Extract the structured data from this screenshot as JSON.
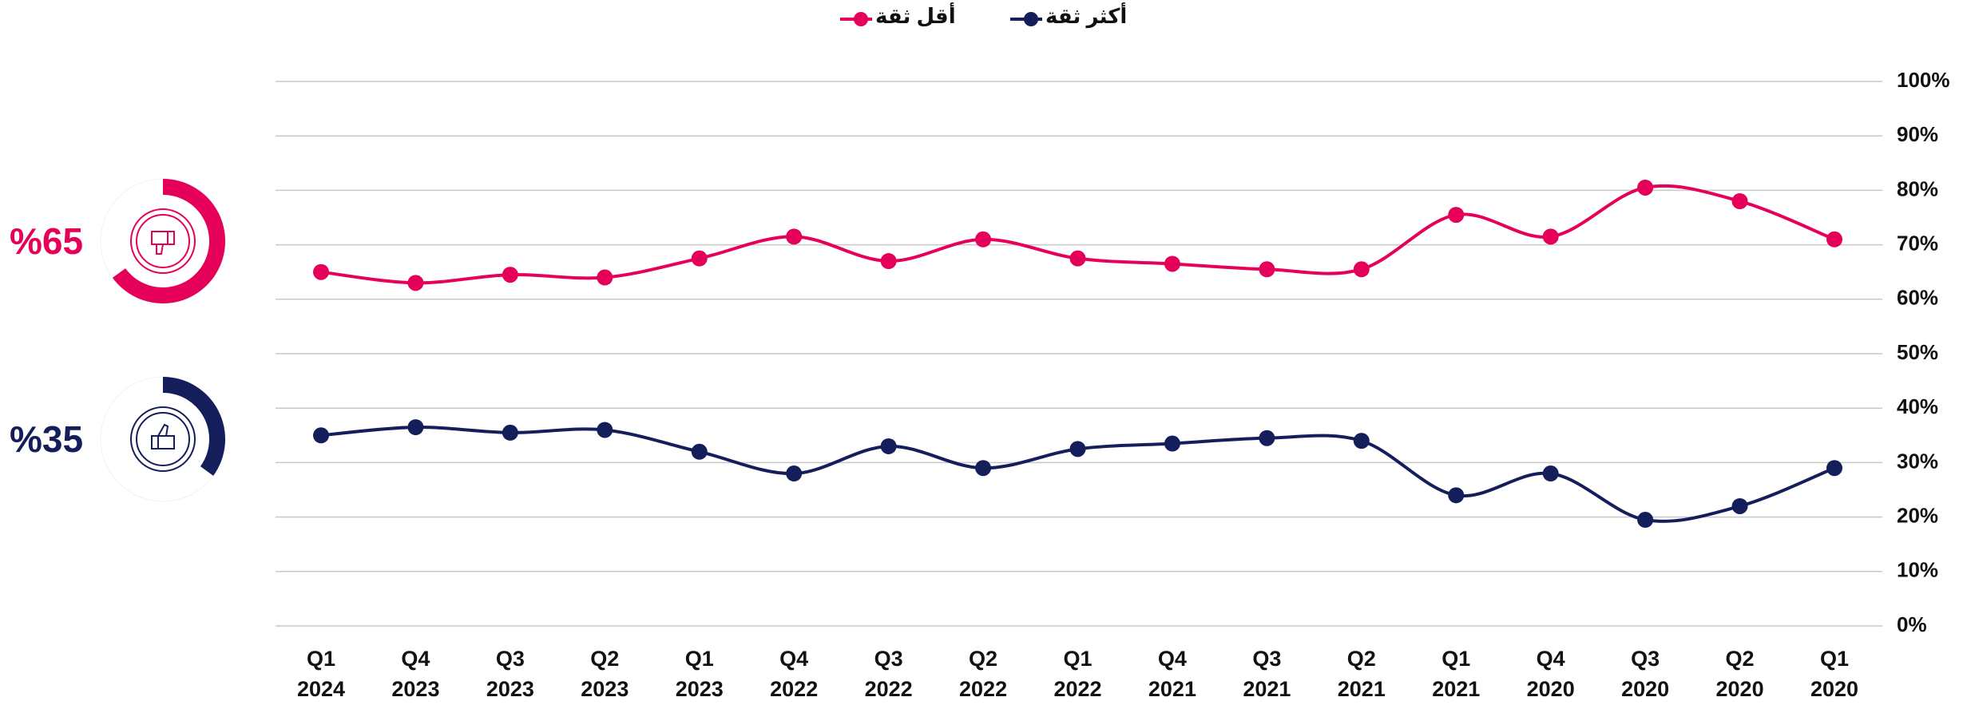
{
  "chart_data": {
    "type": "line",
    "categories": [
      "Q1 2024",
      "Q4 2023",
      "Q3 2023",
      "Q2 2023",
      "Q1 2023",
      "Q4 2022",
      "Q3 2022",
      "Q2 2022",
      "Q1 2022",
      "Q4 2021",
      "Q3 2021",
      "Q2 2021",
      "Q1 2021",
      "Q4 2020",
      "Q3 2020",
      "Q2 2020",
      "Q1 2020"
    ],
    "series": [
      {
        "name": "أقل ثقة",
        "color": "#e5005a",
        "values": [
          65,
          63,
          64.5,
          64,
          67.5,
          71.5,
          67,
          71,
          67.5,
          66.5,
          65.5,
          65.5,
          75.5,
          71.5,
          80.5,
          78,
          71
        ]
      },
      {
        "name": "أكثر ثقة",
        "color": "#141e5a",
        "values": [
          35,
          36.5,
          35.5,
          36,
          32,
          28,
          33,
          29,
          32.5,
          33.5,
          34.5,
          34,
          24,
          28,
          19.5,
          22,
          29
        ]
      }
    ],
    "ylim": [
      0,
      100
    ],
    "yticks": [
      {
        "value": 0,
        "label": "0%"
      },
      {
        "value": 10,
        "label": "10%"
      },
      {
        "value": 20,
        "label": "20%"
      },
      {
        "value": 30,
        "label": "30%"
      },
      {
        "value": 40,
        "label": "40%"
      },
      {
        "value": 50,
        "label": "50%"
      },
      {
        "value": 60,
        "label": "60%"
      },
      {
        "value": 70,
        "label": "70%"
      },
      {
        "value": 80,
        "label": "80%"
      },
      {
        "value": 90,
        "label": "90%"
      },
      {
        "value": 100,
        "label": "100%"
      }
    ],
    "grid": true,
    "summary": [
      {
        "label": "%65",
        "value": 65,
        "color": "#e5005a"
      },
      {
        "label": "%35",
        "value": 35,
        "color": "#141e5a"
      }
    ]
  }
}
